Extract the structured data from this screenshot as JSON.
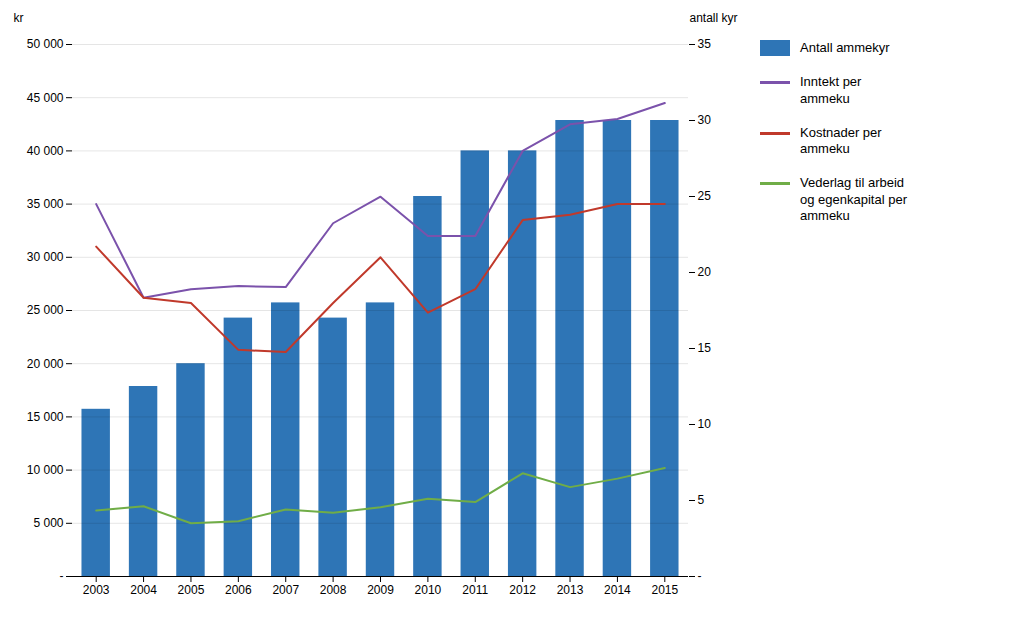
{
  "chart_data": {
    "type": "bar",
    "categories": [
      "2003",
      "2004",
      "2005",
      "2006",
      "2007",
      "2008",
      "2009",
      "2010",
      "2011",
      "2012",
      "2013",
      "2014",
      "2015"
    ],
    "series": [
      {
        "name": "Antall ammekyr",
        "type": "bar",
        "axis": "y2",
        "color": "#2E75B6",
        "values": [
          11,
          12.5,
          14,
          17,
          18,
          17,
          18,
          25,
          28,
          28,
          30,
          30,
          30
        ]
      },
      {
        "name": "Inntekt per\nammeku",
        "type": "line",
        "color": "#7B52AB",
        "values": [
          35000,
          26200,
          27000,
          27300,
          27200,
          33200,
          35700,
          32000,
          32000,
          40000,
          42500,
          43000,
          44500
        ]
      },
      {
        "name": "Kostnader per\nammeku",
        "type": "line",
        "color": "#C0392B",
        "values": [
          31000,
          26200,
          25700,
          21300,
          21100,
          25700,
          30000,
          24800,
          27000,
          33500,
          34000,
          35000,
          35000
        ]
      },
      {
        "name": "Vederlag til arbeid\nog egenkapital per\nammeku",
        "type": "line",
        "color": "#70AD47",
        "values": [
          6200,
          6600,
          5000,
          5200,
          6300,
          6000,
          6500,
          7300,
          7000,
          9700,
          8400,
          9200,
          10200
        ]
      }
    ],
    "ylabel": "kr",
    "y2label": "antall kyr",
    "ylim": [
      0,
      50000
    ],
    "yticks": [
      {
        "value": 0,
        "label": "-"
      },
      {
        "value": 5000,
        "label": "5 000"
      },
      {
        "value": 10000,
        "label": "10 000"
      },
      {
        "value": 15000,
        "label": "15 000"
      },
      {
        "value": 20000,
        "label": "20 000"
      },
      {
        "value": 25000,
        "label": "25 000"
      },
      {
        "value": 30000,
        "label": "30 000"
      },
      {
        "value": 35000,
        "label": "35 000"
      },
      {
        "value": 40000,
        "label": "40 000"
      },
      {
        "value": 45000,
        "label": "45 000"
      },
      {
        "value": 50000,
        "label": "50 000"
      }
    ],
    "y2lim": [
      0,
      35
    ],
    "y2ticks": [
      {
        "value": 0,
        "label": "-"
      },
      5,
      10,
      15,
      20,
      25,
      30,
      35
    ],
    "grid": true,
    "legend": "right"
  }
}
